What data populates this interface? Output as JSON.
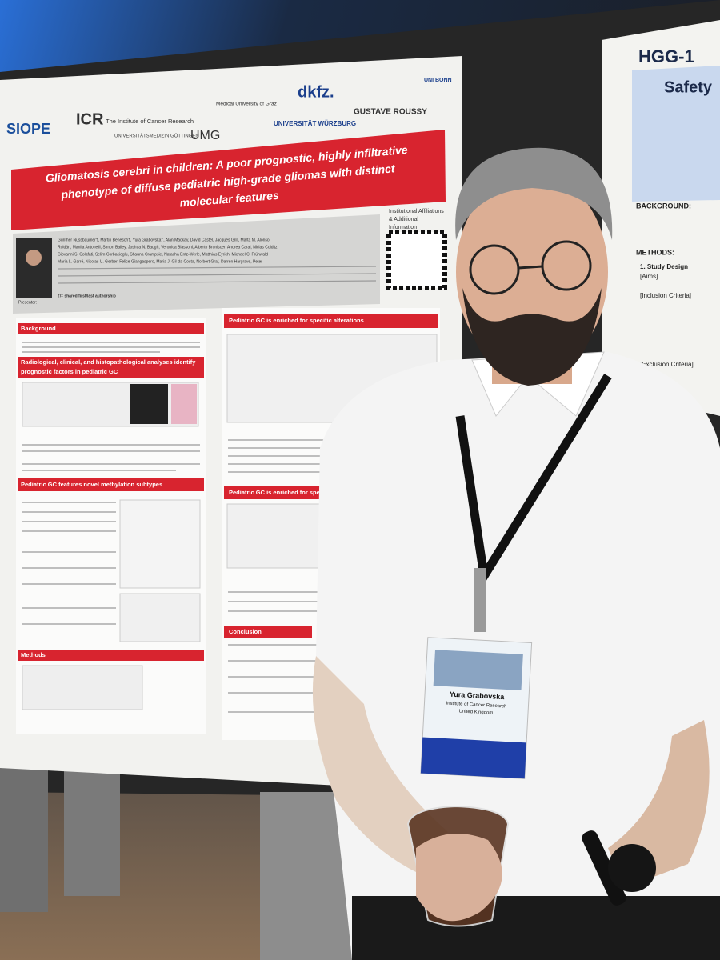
{
  "poster": {
    "logos": [
      "SIOPE",
      "ICR",
      "The Institute of Cancer Research",
      "Medical University of Graz",
      "dkfz.",
      "UNI BONN",
      "UNIVERSITÄTSMEDIZIN GÖTTINGEN",
      "UMG",
      "UNIVERSITÄT WÜRZBURG",
      "GUSTAVE ROUSSY"
    ],
    "title": [
      "Gliomatosis cerebri in children: A poor prognostic, highly infiltrative",
      "phenotype of diffuse pediatric high-grade gliomas with distinct",
      "molecular features"
    ],
    "authors": [
      "Gunther Nussbaumer†, Martin Benesch†, Yura Grabovska†, Alan Mackay, David Castel, Jacques Grill, Marta M. Alonso",
      "Roldán, Manila Antonelli, Simon Bailey, Joshua N. Baugh, Veronica Biassoni, Alberto Broniscer, Andrea Carai, Niclas Colditz",
      "Giovanni S. Colafati, Selim Corbacioglu, Shauna Crampsie, Natacha Entz-Werle, Matthias Eyrich, Michael C. Frühwald",
      "Maria L. Garré, Nicolas U. Gerber, Felice Giangaspero, Maria J. Gil-da-Costa, Norbert Graf, Darren Hargrave, Peter"
    ],
    "presenter": "Presenter:",
    "affiliations_note": [
      "Institutional Affiliations",
      "& Additional",
      "Information"
    ],
    "authorship_note": "†/‡ shared first/last authorship",
    "sections": [
      [
        "Background"
      ],
      [
        "Radiological, clinical, and histopathological analyses identify",
        "prognostic factors in pediatric GC"
      ],
      [
        "Pediatric GC features novel methylation subtypes"
      ],
      [
        "Methods"
      ],
      [
        "Pediatric GC is enriched for specific alterations"
      ],
      [
        "Pediatric GC is enriched for specific tum"
      ],
      [
        "Conclusion"
      ]
    ]
  },
  "right_poster": {
    "title": "HGG-1",
    "subtitle": "Safety",
    "headings": [
      "BACKGROUND:",
      "METHODS:",
      "1. Study Design",
      "[Aims]",
      "[Inclusion Criteria]",
      "[Exclusion Criteria]"
    ]
  },
  "badge": {
    "name": "Yura Grabovska",
    "lines": [
      "Institute of Cancer Research",
      "United Kingdom"
    ]
  }
}
